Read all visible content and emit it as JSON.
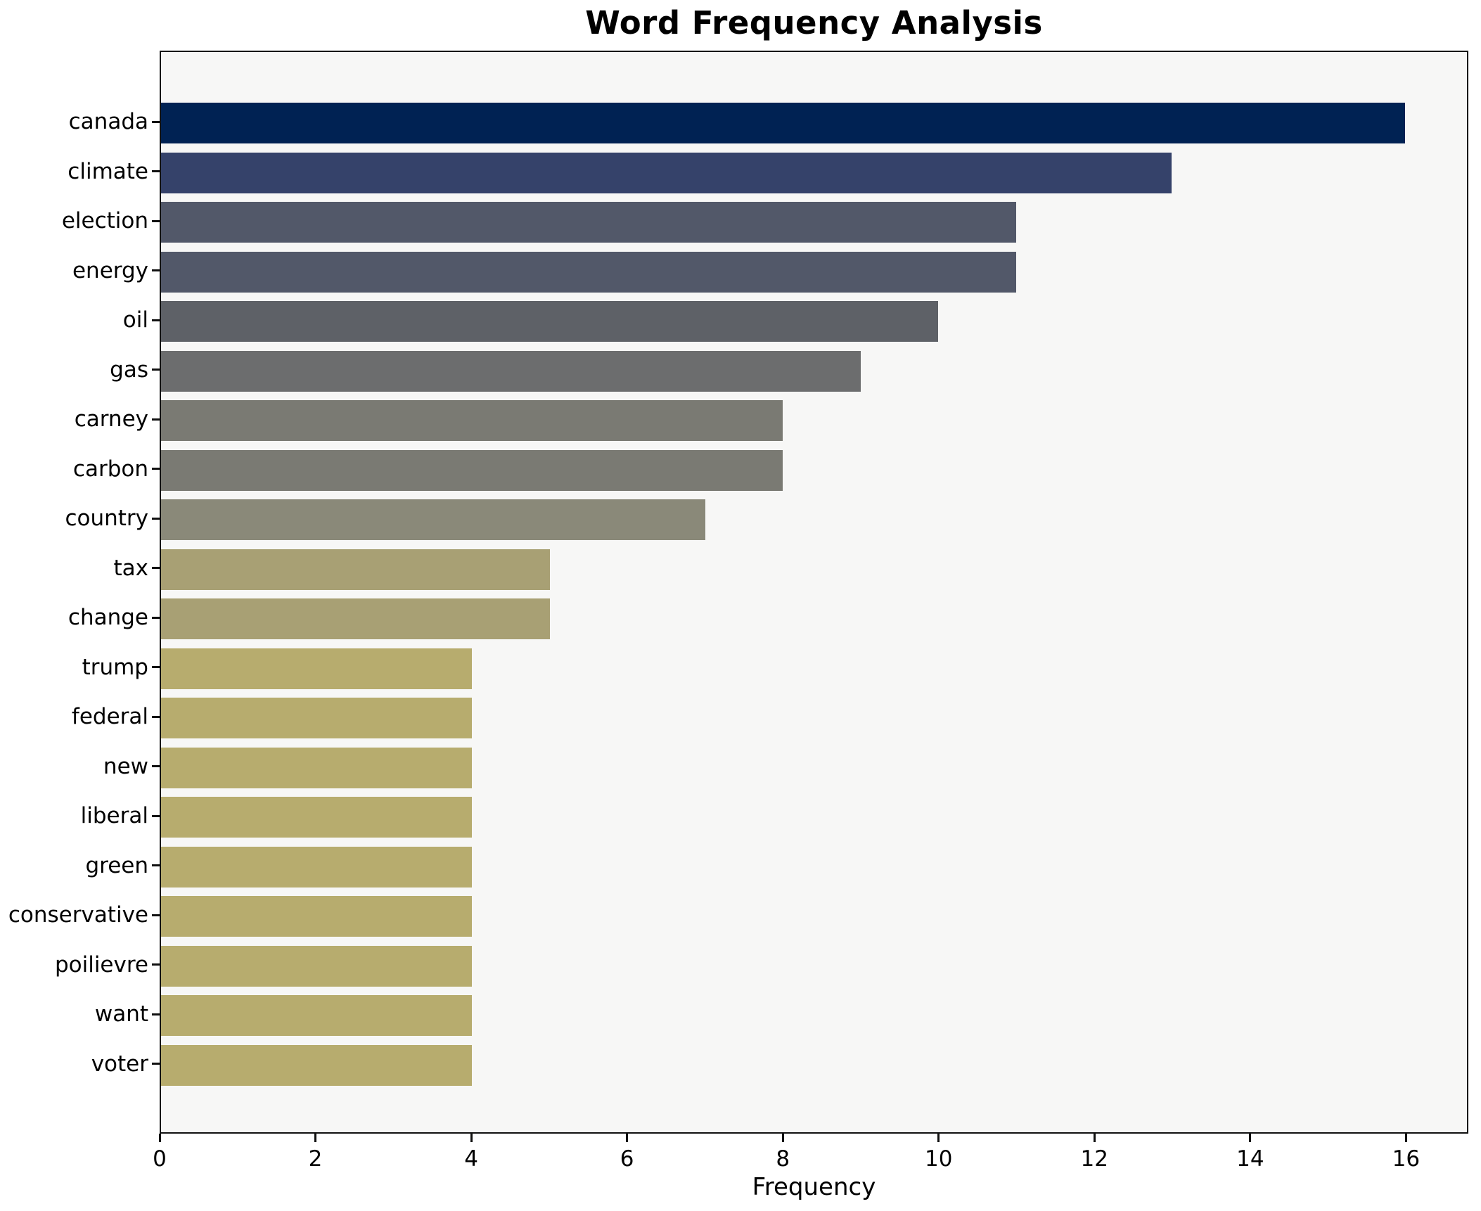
{
  "title": "Word Frequency Analysis",
  "chart_data": {
    "type": "bar",
    "orientation": "horizontal",
    "title": "Word Frequency Analysis",
    "xlabel": "Frequency",
    "ylabel": "",
    "xlim": [
      0,
      16.8
    ],
    "xticks": [
      0,
      2,
      4,
      6,
      8,
      10,
      12,
      14,
      16
    ],
    "grid": false,
    "legend": false,
    "categories": [
      "canada",
      "climate",
      "election",
      "energy",
      "oil",
      "gas",
      "carney",
      "carbon",
      "country",
      "tax",
      "change",
      "trump",
      "federal",
      "new",
      "liberal",
      "green",
      "conservative",
      "poilievre",
      "want",
      "voter"
    ],
    "values": [
      16,
      13,
      11,
      11,
      10,
      9,
      8,
      8,
      7,
      5,
      5,
      4,
      4,
      4,
      4,
      4,
      4,
      4,
      4,
      4
    ],
    "bar_colors": [
      "#002253",
      "#35426a",
      "#525869",
      "#525869",
      "#5e6167",
      "#6c6d6e",
      "#7a7a73",
      "#7a7a73",
      "#8a8979",
      "#a8a074",
      "#a8a074",
      "#b7ac6e",
      "#b7ac6e",
      "#b7ac6e",
      "#b7ac6e",
      "#b7ac6e",
      "#b7ac6e",
      "#b7ac6e",
      "#b7ac6e",
      "#b7ac6e"
    ],
    "colors": {
      "figure_background": "#ffffff",
      "axes_background": "#f7f7f6",
      "spine": "#111111",
      "text": "#000000"
    }
  }
}
